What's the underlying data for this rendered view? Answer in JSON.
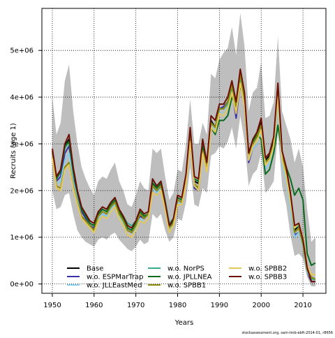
{
  "chart_data": {
    "type": "line",
    "xlabel": "Years",
    "ylabel": "Recruits (age 1)",
    "xlim": [
      1947.5,
      2015.5
    ],
    "ylim": [
      -200000,
      5900000
    ],
    "x_ticks": [
      1950,
      1960,
      1970,
      1980,
      1990,
      2000,
      2010
    ],
    "x_tick_labels": [
      "1950",
      "1960",
      "1970",
      "1980",
      "1990",
      "2000",
      "2010"
    ],
    "y_ticks": [
      0,
      1000000,
      2000000,
      3000000,
      4000000,
      5000000
    ],
    "y_tick_labels": [
      "0e+00",
      "1e+06",
      "2e+06",
      "3e+06",
      "4e+06",
      "5e+06"
    ],
    "grid": "dotted, at ticks",
    "legend_position": "bottom-left",
    "credit": "stockassessment.org, sam-tmb-ebft-2014-01, r8656",
    "x": [
      1950,
      1951,
      1952,
      1953,
      1954,
      1955,
      1956,
      1957,
      1958,
      1959,
      1960,
      1961,
      1962,
      1963,
      1964,
      1965,
      1966,
      1967,
      1968,
      1969,
      1970,
      1971,
      1972,
      1973,
      1974,
      1975,
      1976,
      1977,
      1978,
      1979,
      1980,
      1981,
      1982,
      1983,
      1984,
      1985,
      1986,
      1987,
      1988,
      1989,
      1990,
      1991,
      1992,
      1993,
      1994,
      1995,
      1996,
      1997,
      1998,
      1999,
      2000,
      2001,
      2002,
      2003,
      2004,
      2005,
      2006,
      2007,
      2008,
      2009,
      2010,
      2011,
      2012,
      2013
    ],
    "band": {
      "upper": [
        4000000,
        3200000,
        3450000,
        4350000,
        4700000,
        3700000,
        3000000,
        2500000,
        2250000,
        2050000,
        1900000,
        2200000,
        2300000,
        2250000,
        2450000,
        2600000,
        2200000,
        2000000,
        1700000,
        1650000,
        1900000,
        2200000,
        2050000,
        2000000,
        2900000,
        2800000,
        2900000,
        2300000,
        1800000,
        1950000,
        2450000,
        2400000,
        3000000,
        3950000,
        3000000,
        3000000,
        3450000,
        3200000,
        4500000,
        4400000,
        4800000,
        4950000,
        5050000,
        5500000,
        4900000,
        5800000,
        5100000,
        3700000,
        4100000,
        4200000,
        4750000,
        3550000,
        3600000,
        3900000,
        5300000,
        3700000,
        3400000,
        3100000,
        2600000,
        2900000,
        2500000,
        1600000,
        900000,
        1000000
      ]
    },
    "lower": [
      2000000,
      1600000,
      1650000,
      1900000,
      1950000,
      1500000,
      1150000,
      1000000,
      900000,
      850000,
      800000,
      950000,
      1000000,
      950000,
      1050000,
      1100000,
      950000,
      850000,
      750000,
      700000,
      800000,
      950000,
      850000,
      900000,
      1500000,
      1400000,
      1500000,
      1150000,
      900000,
      1000000,
      1400000,
      1350000,
      1750000,
      2500000,
      1700000,
      1650000,
      2050000,
      1950000,
      2750000,
      2800000,
      2950000,
      2900000,
      3050000,
      3350000,
      2900000,
      3600000,
      3050000,
      2100000,
      2350000,
      2450000,
      2800000,
      1950000,
      2050000,
      2200000,
      3250000,
      2100000,
      1700000,
      1050000,
      600000,
      650000,
      550000,
      150000,
      -50000,
      -50000
    ],
    "series": [
      {
        "name": "Base",
        "color": "#000000",
        "values": [
          2850000,
          2250000,
          2450000,
          2950000,
          3100000,
          2450000,
          1950000,
          1600000,
          1450000,
          1300000,
          1250000,
          1500000,
          1600000,
          1550000,
          1700000,
          1800000,
          1550000,
          1400000,
          1200000,
          1150000,
          1300000,
          1550000,
          1450000,
          1500000,
          2200000,
          2050000,
          2150000,
          1700000,
          1250000,
          1350000,
          1850000,
          1800000,
          2300000,
          3250000,
          2200000,
          2150000,
          3000000,
          2550000,
          3500000,
          3350000,
          3750000,
          3750000,
          3900000,
          4250000,
          3800000,
          4500000,
          4000000,
          2750000,
          3050000,
          3150000,
          3450000,
          2650000,
          2750000,
          3050000,
          4200000,
          2800000,
          2450000,
          1900000,
          1150000,
          1250000,
          900000,
          300000,
          100000,
          100000
        ]
      },
      {
        "name": "w.o. ESPMarTrap",
        "color": "#3b2fa8",
        "values": [
          2800000,
          2200000,
          2300000,
          2800000,
          2950000,
          2350000,
          1850000,
          1550000,
          1400000,
          1250000,
          1200000,
          1400000,
          1500000,
          1450000,
          1650000,
          1750000,
          1500000,
          1350000,
          1150000,
          1100000,
          1250000,
          1450000,
          1400000,
          1500000,
          2100000,
          1950000,
          2100000,
          1700000,
          1200000,
          1350000,
          1800000,
          1750000,
          2250000,
          3150000,
          2050000,
          2000000,
          2850000,
          2450000,
          3450000,
          3350000,
          3750000,
          3800000,
          3900000,
          4200000,
          3550000,
          4300000,
          3800000,
          2600000,
          2900000,
          3000000,
          3350000,
          2600000,
          2700000,
          3000000,
          4100000,
          2700000,
          2400000,
          1800000,
          1050000,
          1100000,
          850000,
          250000,
          50000,
          50000
        ]
      },
      {
        "name": "w.o. JLLEastMed",
        "color": "#87ceeb",
        "values": [
          2700000,
          2150000,
          2200000,
          2650000,
          2800000,
          2200000,
          1800000,
          1450000,
          1350000,
          1250000,
          1150000,
          1400000,
          1500000,
          1450000,
          1600000,
          1700000,
          1450000,
          1300000,
          1050000,
          1000000,
          1200000,
          1400000,
          1300000,
          1400000,
          2050000,
          1950000,
          2050000,
          1600000,
          1100000,
          1300000,
          1750000,
          1700000,
          2200000,
          3050000,
          2100000,
          2050000,
          2800000,
          2500000,
          3350000,
          3300000,
          3700000,
          3600000,
          3800000,
          4150000,
          3700000,
          4300000,
          3800000,
          2650000,
          2900000,
          3000000,
          3250000,
          2450000,
          2600000,
          2900000,
          3850000,
          2550000,
          2200000,
          1600000,
          1000000,
          1100000,
          800000,
          250000,
          100000,
          100000
        ]
      },
      {
        "name": "w.o. NorPS",
        "color": "#3aaa8e",
        "values": [
          2850000,
          2250000,
          2450000,
          2900000,
          3050000,
          2450000,
          1950000,
          1600000,
          1450000,
          1300000,
          1250000,
          1500000,
          1600000,
          1550000,
          1750000,
          1850000,
          1600000,
          1450000,
          1300000,
          1250000,
          1350000,
          1550000,
          1450000,
          1500000,
          2200000,
          2100000,
          2200000,
          1800000,
          1300000,
          1400000,
          1850000,
          1800000,
          2300000,
          3250000,
          2250000,
          2200000,
          3000000,
          2600000,
          3450000,
          3350000,
          3750000,
          3750000,
          3850000,
          4200000,
          3800000,
          4400000,
          3900000,
          2700000,
          3000000,
          3150000,
          3350000,
          2600000,
          2700000,
          3000000,
          4150000,
          2800000,
          2450000,
          1900000,
          1200000,
          1250000,
          950000,
          300000,
          100000,
          100000
        ]
      },
      {
        "name": "w.o. JPLLNEA",
        "color": "#0a6b1f",
        "values": [
          2850000,
          2250000,
          2400000,
          2950000,
          3050000,
          2400000,
          1950000,
          1600000,
          1450000,
          1300000,
          1250000,
          1500000,
          1600000,
          1550000,
          1700000,
          1800000,
          1550000,
          1400000,
          1200000,
          1150000,
          1300000,
          1550000,
          1450000,
          1500000,
          2150000,
          2050000,
          2150000,
          1700000,
          1250000,
          1350000,
          1850000,
          1800000,
          2300000,
          3250000,
          2250000,
          2200000,
          2950000,
          2550000,
          3350000,
          3200000,
          3500000,
          3500000,
          3600000,
          4000000,
          3800000,
          4250000,
          3900000,
          2800000,
          3050000,
          3200000,
          3100000,
          2350000,
          2450000,
          2800000,
          3400000,
          2800000,
          2500000,
          2250000,
          1900000,
          2050000,
          1800000,
          650000,
          400000,
          450000
        ]
      },
      {
        "name": "w.o. SPBB1",
        "color": "#8a8a0a",
        "values": [
          2850000,
          2100000,
          2050000,
          2500000,
          2600000,
          2100000,
          1750000,
          1450000,
          1350000,
          1250000,
          1150000,
          1450000,
          1550000,
          1500000,
          1650000,
          1750000,
          1500000,
          1350000,
          1150000,
          1100000,
          1250000,
          1500000,
          1400000,
          1500000,
          2100000,
          2000000,
          2100000,
          1650000,
          1200000,
          1300000,
          1800000,
          1750000,
          2250000,
          3150000,
          2150000,
          2050000,
          2850000,
          2500000,
          3450000,
          3350000,
          3750000,
          3750000,
          3900000,
          4250000,
          3800000,
          4500000,
          3950000,
          2750000,
          3000000,
          3150000,
          3400000,
          2600000,
          2700000,
          3000000,
          4150000,
          2750000,
          2400000,
          1800000,
          1100000,
          1200000,
          850000,
          300000,
          150000,
          100000
        ]
      },
      {
        "name": "w.o. SPBB2",
        "color": "#e6c85a",
        "values": [
          2700000,
          2050000,
          2000000,
          2450000,
          2550000,
          2050000,
          1700000,
          1400000,
          1300000,
          1200000,
          1100000,
          1350000,
          1450000,
          1400000,
          1550000,
          1650000,
          1400000,
          1250000,
          1050000,
          1000000,
          1150000,
          1350000,
          1300000,
          1400000,
          1950000,
          1900000,
          2000000,
          1600000,
          1100000,
          1250000,
          1700000,
          1700000,
          2150000,
          3050000,
          2100000,
          2000000,
          2800000,
          2400000,
          3350000,
          3250000,
          3650000,
          3600000,
          3750000,
          4100000,
          3650000,
          4300000,
          3800000,
          2650000,
          2950000,
          3050000,
          3300000,
          2550000,
          2650000,
          2950000,
          4000000,
          2650000,
          2300000,
          1750000,
          1200000,
          1300000,
          1000000,
          400000,
          200000,
          200000
        ]
      },
      {
        "name": "w.o. SPBB3",
        "color": "#6b0f05",
        "values": [
          2900000,
          2300000,
          2450000,
          3000000,
          3200000,
          2500000,
          2000000,
          1650000,
          1500000,
          1350000,
          1300000,
          1550000,
          1650000,
          1600000,
          1750000,
          1850000,
          1600000,
          1450000,
          1250000,
          1200000,
          1350000,
          1600000,
          1500000,
          1550000,
          2250000,
          2100000,
          2200000,
          1750000,
          1250000,
          1400000,
          1900000,
          1850000,
          2350000,
          3350000,
          2300000,
          2250000,
          3100000,
          2600000,
          3600000,
          3500000,
          3850000,
          3850000,
          4000000,
          4350000,
          3900000,
          4600000,
          4100000,
          2800000,
          3100000,
          3250000,
          3550000,
          2700000,
          2800000,
          3150000,
          4300000,
          2850000,
          2500000,
          1950000,
          1250000,
          1300000,
          950000,
          350000,
          50000,
          50000
        ]
      }
    ]
  }
}
